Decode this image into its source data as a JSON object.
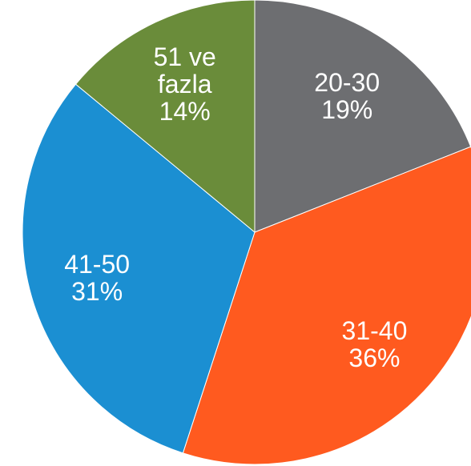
{
  "chart_data": {
    "type": "pie",
    "categories": [
      "20-30",
      "31-40",
      "41-50",
      "51 ve fazla"
    ],
    "values": [
      19,
      36,
      31,
      14
    ],
    "value_labels": [
      "19%",
      "36%",
      "31%",
      "14%"
    ],
    "colors": [
      "#6d6e71",
      "#ff5a1f",
      "#1b8fd2",
      "#6a8c3a"
    ]
  }
}
